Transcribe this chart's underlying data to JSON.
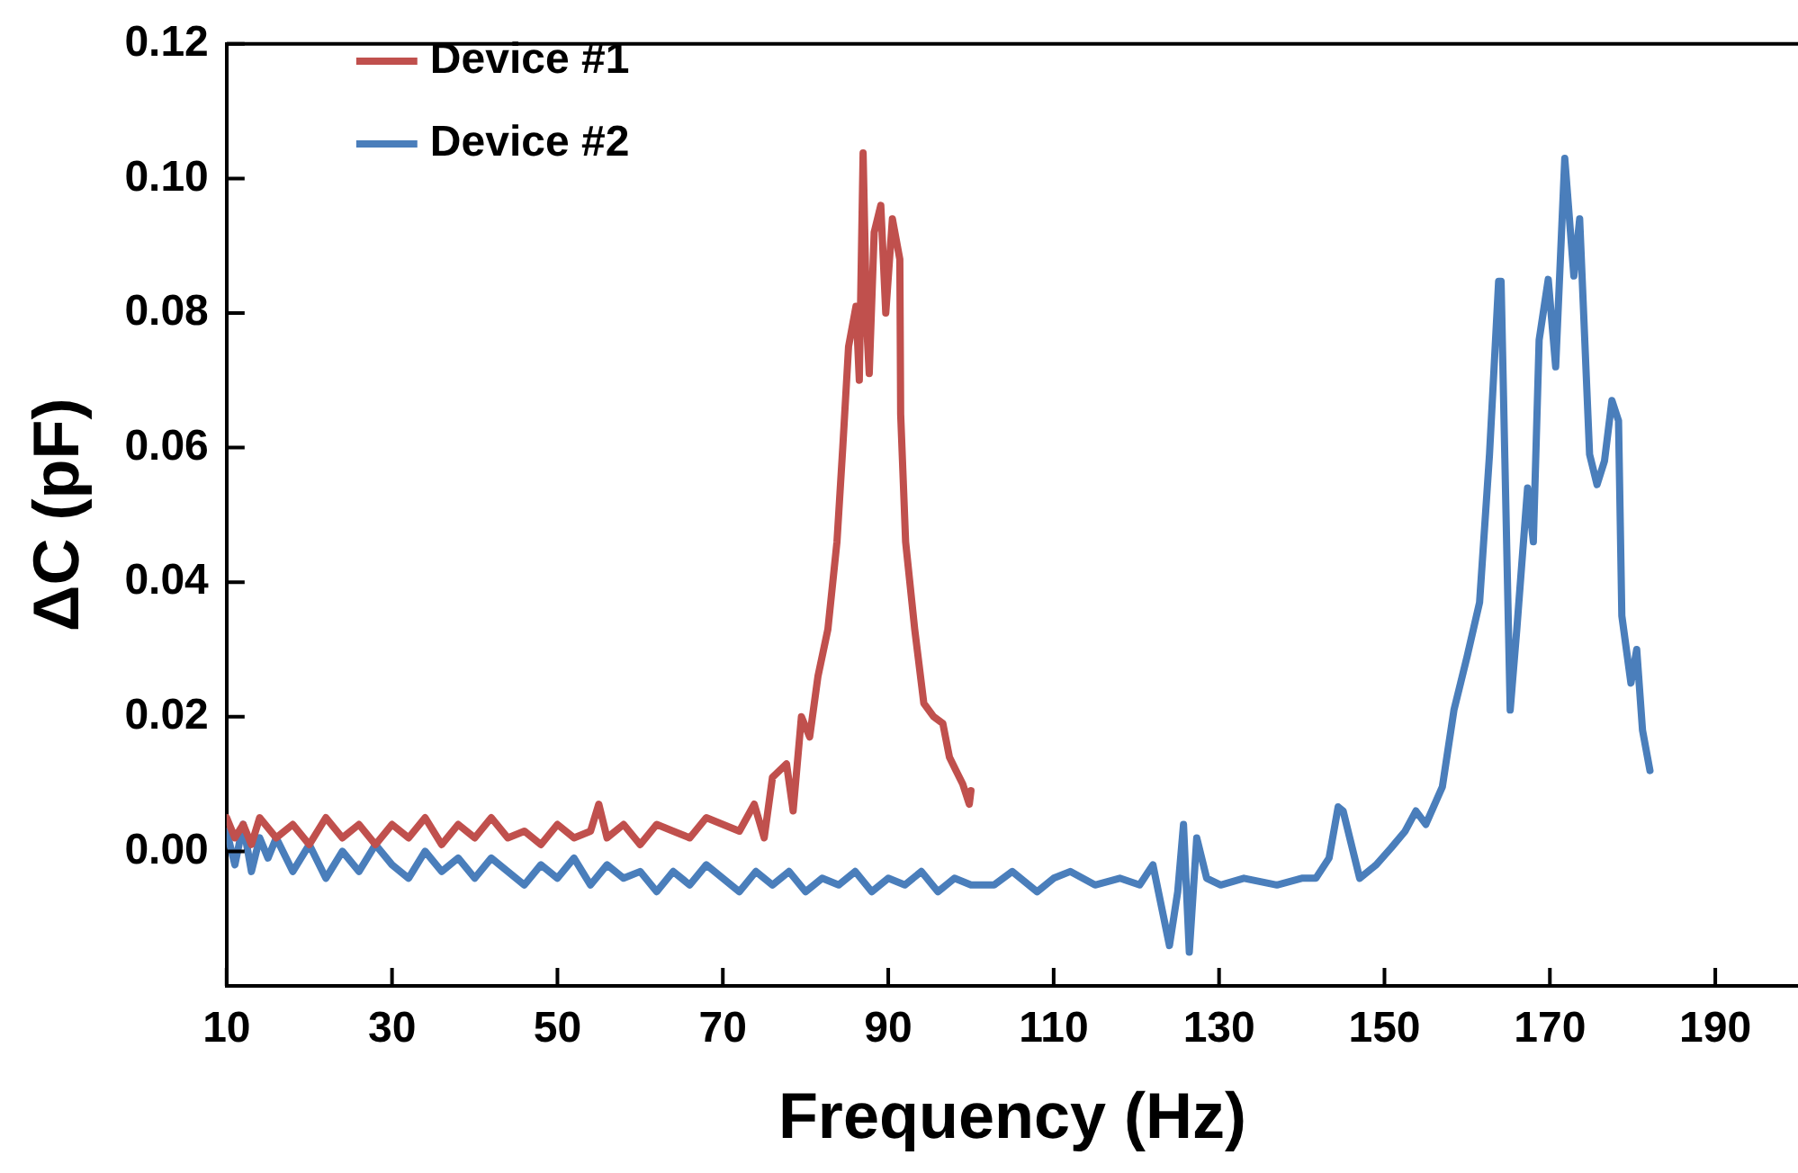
{
  "chart_data": {
    "type": "line",
    "xlabel": "Frequency (Hz)",
    "ylabel": "ΔC (pF)",
    "xlim": [
      10,
      200
    ],
    "xticks": [
      10,
      30,
      50,
      70,
      90,
      110,
      130,
      150,
      170,
      190
    ],
    "ylim": [
      -0.02,
      0.12
    ],
    "yticks": [
      {
        "value": 0,
        "label": "0.00"
      },
      {
        "value": 0.02,
        "label": "0.02"
      },
      {
        "value": 0.04,
        "label": "0.04"
      },
      {
        "value": 0.06,
        "label": "0.06"
      },
      {
        "value": 0.08,
        "label": "0.08"
      },
      {
        "value": 0.1,
        "label": "0.10"
      },
      {
        "value": 0.12,
        "label": "0.12"
      }
    ],
    "grid": false,
    "legend": "top left",
    "marker": "none",
    "line_style": "solid",
    "series": [
      {
        "name": "Device #1",
        "color": "#c0504d",
        "x": [
          10,
          11,
          12,
          13,
          14,
          16,
          18,
          20,
          22,
          24,
          26,
          28,
          30,
          32,
          34,
          36,
          38,
          40,
          42,
          44,
          46,
          48,
          50,
          52,
          54,
          55,
          56,
          58,
          60,
          62,
          64,
          66,
          68,
          70,
          72,
          73.8,
          75,
          76,
          77.7,
          78.5,
          79.5,
          80.5,
          81.5,
          82.7,
          83.8,
          84.5,
          85.2,
          86.1,
          86.5,
          86.96,
          87.4,
          87.7,
          88.3,
          89.1,
          89.7,
          90.5,
          91.4,
          91.5,
          92.1,
          93.2,
          94.3,
          95.5,
          96.6,
          97.4,
          98.2,
          99,
          99.8,
          100
        ],
        "values": [
          0.005,
          0.002,
          0.004,
          0.001,
          0.005,
          0.002,
          0.004,
          0.001,
          0.005,
          0.002,
          0.004,
          0.001,
          0.004,
          0.002,
          0.005,
          0.001,
          0.004,
          0.002,
          0.005,
          0.002,
          0.003,
          0.001,
          0.004,
          0.002,
          0.003,
          0.007,
          0.002,
          0.004,
          0.001,
          0.004,
          0.003,
          0.002,
          0.005,
          0.004,
          0.003,
          0.007,
          0.002,
          0.011,
          0.013,
          0.006,
          0.02,
          0.017,
          0.026,
          0.033,
          0.046,
          0.06,
          0.075,
          0.081,
          0.07,
          0.1038,
          0.078,
          0.071,
          0.092,
          0.096,
          0.08,
          0.094,
          0.088,
          0.065,
          0.046,
          0.033,
          0.022,
          0.02,
          0.019,
          0.014,
          0.012,
          0.01,
          0.007,
          0.009
        ]
      },
      {
        "name": "Device #2",
        "color": "#4a7ebb",
        "x": [
          10,
          11,
          12,
          13,
          14,
          15,
          16,
          18,
          20,
          22,
          24,
          26,
          28,
          30,
          32,
          34,
          36,
          38,
          40,
          42,
          44,
          46,
          48,
          50,
          52,
          54,
          56,
          58,
          60,
          62,
          64,
          66,
          68,
          70,
          72,
          74,
          76,
          78,
          80,
          82,
          84,
          86,
          88,
          90,
          92,
          94,
          96,
          98,
          100,
          102.8,
          105,
          108,
          110,
          112,
          115,
          118,
          120.4,
          122,
          124,
          125,
          125.7,
          126.4,
          127.3,
          128.5,
          130.2,
          133,
          137,
          140,
          141.7,
          143.3,
          144.4,
          145,
          147,
          149,
          150.8,
          152.5,
          153.8,
          155,
          157,
          158.4,
          160,
          161.5,
          162.7,
          163.8,
          164.1,
          165.2,
          166,
          167.3,
          168,
          168.7,
          169.8,
          170.7,
          171.8,
          172.9,
          173.6,
          174.8,
          175.7,
          176.6,
          177.5,
          178.3,
          178.7,
          179.8,
          180.5,
          181.2,
          182.1
        ],
        "values": [
          0.003,
          -0.002,
          0.004,
          -0.003,
          0.002,
          -0.001,
          0.002,
          -0.003,
          0.001,
          -0.004,
          0,
          -0.003,
          0.001,
          -0.002,
          -0.004,
          0,
          -0.003,
          -0.001,
          -0.004,
          -0.001,
          -0.003,
          -0.005,
          -0.002,
          -0.004,
          -0.001,
          -0.005,
          -0.002,
          -0.004,
          -0.003,
          -0.006,
          -0.003,
          -0.005,
          -0.002,
          -0.004,
          -0.006,
          -0.003,
          -0.005,
          -0.003,
          -0.006,
          -0.004,
          -0.005,
          -0.003,
          -0.006,
          -0.004,
          -0.005,
          -0.003,
          -0.006,
          -0.004,
          -0.005,
          -0.005,
          -0.003,
          -0.006,
          -0.004,
          -0.003,
          -0.005,
          -0.004,
          -0.005,
          -0.002,
          -0.014,
          -0.006,
          0.004,
          -0.015,
          0.002,
          -0.004,
          -0.005,
          -0.004,
          -0.005,
          -0.004,
          -0.004,
          -0.001,
          0.0066,
          0.006,
          -0.004,
          -0.002,
          0.0005,
          0.003,
          0.006,
          0.004,
          0.0096,
          0.021,
          0.029,
          0.037,
          0.059,
          0.0847,
          0.0847,
          0.021,
          0.033,
          0.054,
          0.046,
          0.076,
          0.085,
          0.072,
          0.103,
          0.0855,
          0.094,
          0.059,
          0.0545,
          0.058,
          0.067,
          0.064,
          0.035,
          0.025,
          0.03,
          0.018,
          0.012
        ]
      }
    ]
  }
}
